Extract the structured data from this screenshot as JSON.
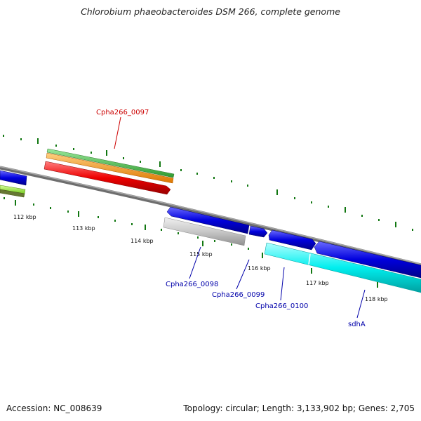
{
  "title": "Chlorobium phaeobacteroides DSM 266, complete genome",
  "footer": {
    "accession": "Accession: NC_008639",
    "topology": "Topology: circular; Length: 3,133,902 bp; Genes: 2,705"
  },
  "scale_labels": [
    {
      "name": "kbp-112",
      "text": "112 kbp"
    },
    {
      "name": "kbp-113",
      "text": "113 kbp"
    },
    {
      "name": "kbp-114",
      "text": "114 kbp"
    },
    {
      "name": "kbp-115",
      "text": "115 kbp"
    },
    {
      "name": "kbp-116",
      "text": "116 kbp"
    },
    {
      "name": "kbp-117",
      "text": "117 kbp"
    },
    {
      "name": "kbp-118",
      "text": "118 kbp"
    }
  ],
  "gene_labels": {
    "cpha0097": "Cpha266_0097",
    "cpha0098": "Cpha266_0098",
    "cpha0099": "Cpha266_0099",
    "cpha0100": "Cpha266_0100",
    "sdhA": "sdhA"
  },
  "colors": {
    "backbone": "#808080",
    "cds_forward": "#0000dd",
    "cds_highlight_red": "#ee0000",
    "rrna_orange": "#ff9900",
    "gene_green": "#44bb44",
    "cyan": "#00eeee",
    "grey_feature": "#c8c8c8",
    "lime": "#99ee44",
    "olive": "#667733",
    "tick_green": "#117711",
    "label_red": "#cc0000",
    "label_blue": "#0000aa"
  }
}
